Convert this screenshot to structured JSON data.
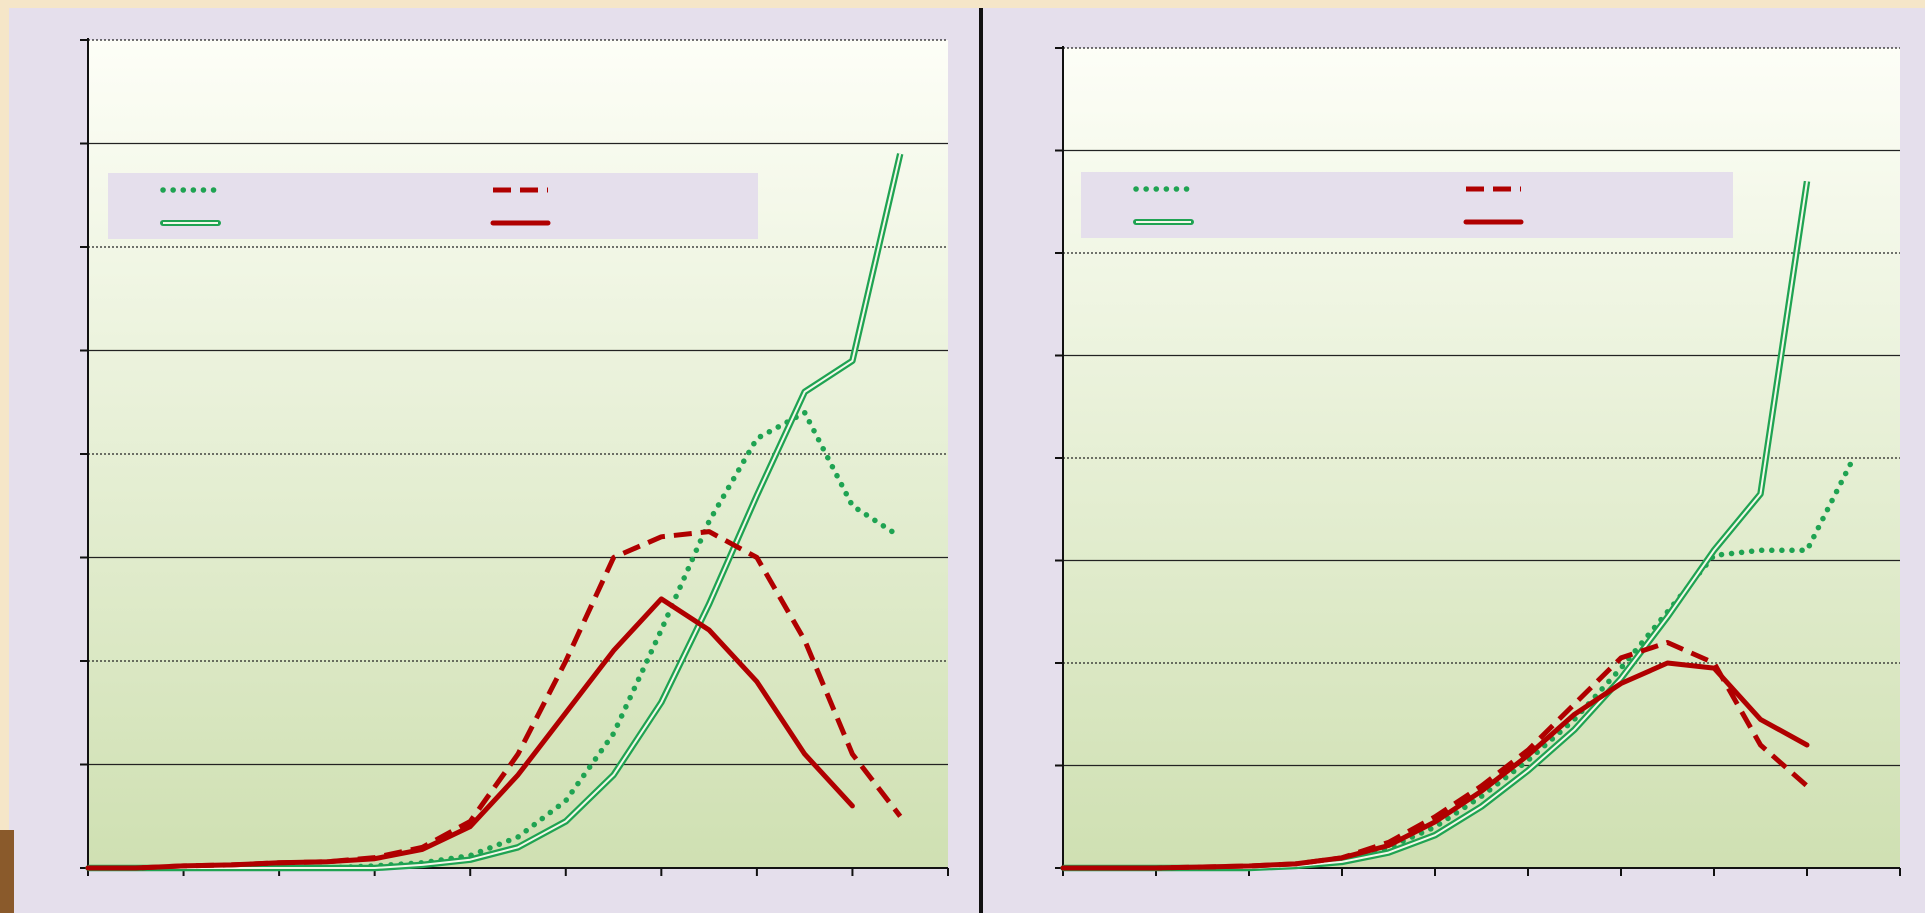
{
  "slide": {
    "background": "#f5e6c8",
    "panel_color": "#e5dfec",
    "plot_gradient_top": "#fdfef7",
    "plot_gradient_bottom": "#cfe0b2",
    "subtitle": ""
  },
  "chart_data": [
    {
      "type": "line",
      "title": "",
      "xlabel": "",
      "ylabel": "",
      "x": [
        0,
        1,
        2,
        3,
        4,
        5,
        6,
        7,
        8,
        9,
        10,
        11,
        12,
        13,
        14,
        15,
        16,
        17,
        18
      ],
      "xlim": [
        0,
        18
      ],
      "ylim": [
        0,
        8
      ],
      "x_ticks": [
        0,
        2,
        4,
        6,
        8,
        10,
        12,
        14,
        16,
        18
      ],
      "grid": {
        "solid": [
          1,
          3,
          5,
          7
        ],
        "dotted": [
          2,
          4,
          6,
          8
        ]
      },
      "legend": {
        "position": "top-left",
        "entries": []
      },
      "series": [
        {
          "style": "dotted",
          "color": "#1fa352",
          "values": [
            0,
            0,
            0,
            0,
            0,
            0,
            0.02,
            0.05,
            0.12,
            0.3,
            0.65,
            1.3,
            2.3,
            3.35,
            4.15,
            4.4,
            3.5,
            3.2,
            null
          ]
        },
        {
          "style": "double",
          "color": "#1fa352",
          "values": [
            0,
            0,
            0,
            0,
            0,
            0,
            0,
            0.03,
            0.08,
            0.2,
            0.45,
            0.9,
            1.6,
            2.55,
            3.6,
            4.6,
            4.9,
            6.9,
            null
          ]
        },
        {
          "style": "dashed",
          "color": "#b00000",
          "values": [
            0,
            0,
            0.02,
            0.03,
            0.05,
            0.06,
            0.1,
            0.2,
            0.45,
            1.1,
            2,
            3,
            3.2,
            3.25,
            3,
            2.2,
            1.1,
            0.5,
            null
          ]
        },
        {
          "style": "solid",
          "color": "#b00000",
          "values": [
            0,
            0,
            0.02,
            0.03,
            0.05,
            0.06,
            0.09,
            0.18,
            0.4,
            0.9,
            1.5,
            2.1,
            2.6,
            2.3,
            1.8,
            1.1,
            0.6,
            null,
            null
          ]
        }
      ]
    },
    {
      "type": "line",
      "title": "",
      "xlabel": "",
      "ylabel": "",
      "x": [
        0,
        1,
        2,
        3,
        4,
        5,
        6,
        7,
        8,
        9,
        10,
        11,
        12,
        13,
        14,
        15,
        16,
        17,
        18
      ],
      "xlim": [
        0,
        18
      ],
      "ylim": [
        0,
        8
      ],
      "x_ticks": [
        0,
        2,
        4,
        6,
        8,
        10,
        12,
        14,
        16,
        18
      ],
      "grid": {
        "solid": [
          1,
          3,
          5,
          7
        ],
        "dotted": [
          2,
          4,
          6,
          8
        ]
      },
      "legend": {
        "position": "top-left",
        "entries": []
      },
      "series": [
        {
          "style": "dotted",
          "color": "#1fa352",
          "values": [
            0,
            0,
            0,
            0,
            0,
            0.02,
            0.08,
            0.2,
            0.4,
            0.7,
            1.05,
            1.45,
            1.95,
            2.5,
            3.05,
            3.1,
            3.1,
            4,
            null
          ]
        },
        {
          "style": "double",
          "color": "#1fa352",
          "values": [
            0,
            0,
            0,
            0,
            0,
            0.02,
            0.06,
            0.15,
            0.32,
            0.6,
            0.95,
            1.35,
            1.85,
            2.45,
            3.1,
            3.65,
            6.7,
            null,
            null
          ]
        },
        {
          "style": "dashed",
          "color": "#b00000",
          "values": [
            0,
            0,
            0,
            0.01,
            0.02,
            0.04,
            0.1,
            0.25,
            0.5,
            0.8,
            1.15,
            1.6,
            2.05,
            2.2,
            2,
            1.2,
            0.8,
            null,
            null
          ]
        },
        {
          "style": "solid",
          "color": "#b00000",
          "values": [
            0,
            0,
            0,
            0.01,
            0.02,
            0.04,
            0.1,
            0.22,
            0.45,
            0.75,
            1.1,
            1.5,
            1.8,
            2,
            1.95,
            1.45,
            1.2,
            null,
            null
          ]
        }
      ]
    }
  ]
}
